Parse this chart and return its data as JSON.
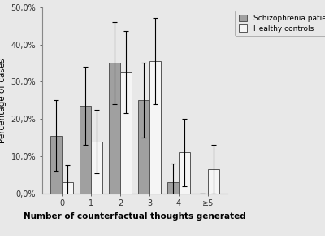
{
  "categories": [
    "0",
    "1",
    "2",
    "3",
    "4",
    "≥5"
  ],
  "schiz_values": [
    15.5,
    23.5,
    35.0,
    25.0,
    3.0,
    0.0
  ],
  "control_values": [
    3.0,
    14.0,
    32.5,
    35.5,
    11.0,
    6.5
  ],
  "schiz_errors": [
    9.5,
    10.5,
    11.0,
    10.0,
    5.0,
    0.0
  ],
  "control_errors": [
    4.5,
    8.5,
    11.0,
    11.5,
    9.0,
    6.5
  ],
  "schiz_color": "#a0a0a0",
  "control_color": "#f5f5f5",
  "bar_edge_color": "#555555",
  "ylabel": "Percentage of cases",
  "xlabel": "Number of counterfactual thoughts generated",
  "ylim": [
    0,
    50
  ],
  "yticks": [
    0,
    10,
    20,
    30,
    40,
    50
  ],
  "ytick_labels": [
    "0,0%",
    "10,0%",
    "20,0%",
    "30,0%",
    "40,0%",
    "50,0%"
  ],
  "legend_labels": [
    "Schizophrenia patients",
    "Healthy controls"
  ],
  "bg_color": "#e8e8e8",
  "plot_bg_color": "#e8e8e8",
  "bar_width": 0.38,
  "error_capsize": 2,
  "font_size": 7,
  "legend_font_size": 6.5,
  "axis_label_font_size": 7.5,
  "xlabel_fontsize": 7.5,
  "xlabel_bold": true
}
